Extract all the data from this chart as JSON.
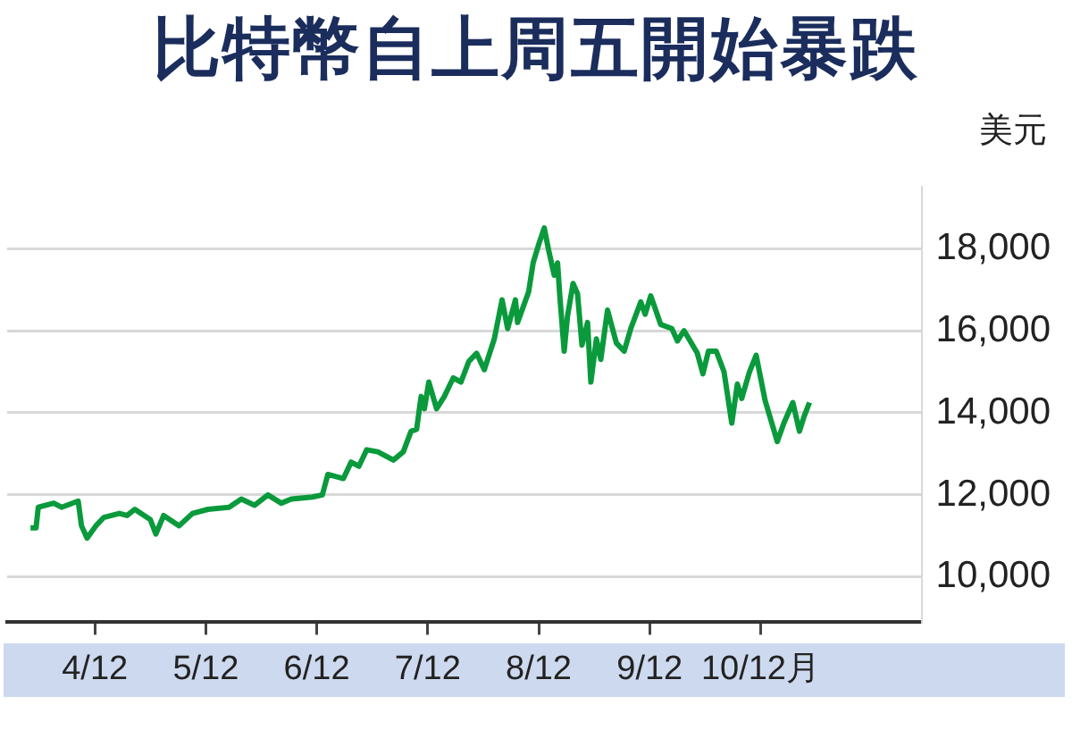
{
  "chart_data": {
    "type": "line",
    "title": "比特幣自上周五開始暴跌",
    "ylabel": "美元",
    "x": [
      "--12-03T10:05",
      "--12-03T11:17",
      "--12-03T11:46",
      "--12-03T13:26",
      "--12-03T15:07",
      "--12-03T16:48",
      "--12-03T20:24",
      "--12-03T21:07",
      "--12-03T22:19",
      "--12-04T00:14",
      "--12-04T01:55",
      "--12-04T05:17",
      "--12-04T06:58",
      "--12-04T08:38",
      "--12-04T12:00",
      "--12-04T13:12",
      "--12-04T14:53",
      "--12-04T18:14",
      "--12-04T21:07",
      "--12-05T00:29",
      "--12-05T05:02",
      "--12-05T07:41",
      "--12-05T10:34",
      "--12-05T13:26",
      "--12-05T16:19",
      "--12-05T18:29",
      "--12-05T23:02",
      "--12-06T01:12",
      "--12-06T02:24",
      "--12-06T05:46",
      "--12-06T07:26",
      "--12-06T09:07",
      "--12-06T10:48",
      "--12-06T13:12",
      "--12-06T16:34",
      "--12-06T18:43",
      "--12-06T20:24",
      "--12-06T21:36",
      "--12-06T22:34",
      "--12-06T23:17",
      "--12-07T00:14",
      "--12-07T01:55",
      "--12-07T03:36",
      "--12-07T05:31",
      "--12-07T07:12",
      "--12-07T08:53",
      "--12-07T10:34",
      "--12-07T12:14",
      "--12-07T14:24",
      "--12-07T16:05",
      "--12-07T17:17",
      "--12-07T18:58",
      "--12-07T19:26",
      "--12-07T21:50",
      "--12-07T22:48",
      "--12-08T00:00",
      "--12-08T01:12",
      "--12-08T02:10",
      "--12-08T03:22",
      "--12-08T04:05",
      "--12-08T04:34",
      "--12-08T05:31",
      "--12-08T06:14",
      "--12-08T07:26",
      "--12-08T08:24",
      "--12-08T09:22",
      "--12-08T10:34",
      "--12-08T11:17",
      "--12-08T12:29",
      "--12-08T13:26",
      "--12-08T14:53",
      "--12-08T16:48",
      "--12-08T18:29",
      "--12-08T19:55",
      "--12-08T22:05",
      "--12-08T23:02",
      "--12-09T00:14",
      "--12-09T02:24",
      "--12-09T04:48",
      "--12-09T06:00",
      "--12-09T07:26",
      "--12-09T10:19",
      "--12-09T11:31",
      "--12-09T12:43",
      "--12-09T14:24",
      "--12-09T16:05",
      "--12-09T17:46",
      "--12-09T18:58",
      "--12-09T19:55",
      "--12-09T21:36",
      "--12-09T23:02",
      "--12-10T00:58",
      "--12-10T03:36",
      "--12-10T05:02",
      "--12-10T06:58",
      "--12-10T08:24",
      "--12-10T09:22",
      "--12-10T10:34"
    ],
    "series": [
      {
        "color": "#0a9a3c",
        "values": [
          11200,
          11200,
          11700,
          11750,
          11800,
          11700,
          11850,
          11250,
          10950,
          11250,
          11450,
          11550,
          11500,
          11650,
          11400,
          11050,
          11500,
          11250,
          11550,
          11650,
          11700,
          11900,
          11750,
          12000,
          11800,
          11900,
          11950,
          12000,
          12500,
          12400,
          12800,
          12700,
          13100,
          13050,
          12850,
          13050,
          13550,
          13600,
          14400,
          14100,
          14750,
          14100,
          14400,
          14850,
          14750,
          15250,
          15450,
          15050,
          15800,
          16750,
          16050,
          16750,
          16200,
          16950,
          17650,
          18100,
          18500,
          17950,
          17350,
          17650,
          16850,
          15500,
          16350,
          17150,
          16900,
          15650,
          16200,
          14750,
          15800,
          15300,
          16500,
          15700,
          15500,
          16050,
          16700,
          16400,
          16850,
          16150,
          16050,
          15750,
          16000,
          15450,
          14950,
          15500,
          15500,
          15000,
          13750,
          14700,
          14350,
          15000,
          15400,
          14300,
          13300,
          13750,
          14250,
          13550,
          13900,
          14250
        ]
      }
    ],
    "xlim": [
      "--12-03T05:02",
      "--12-11T10:48"
    ],
    "xticks": [
      {
        "value": "--12-04",
        "label": "4/12"
      },
      {
        "value": "--12-05",
        "label": "5/12"
      },
      {
        "value": "--12-06",
        "label": "6/12"
      },
      {
        "value": "--12-07",
        "label": "7/12"
      },
      {
        "value": "--12-08",
        "label": "8/12"
      },
      {
        "value": "--12-09",
        "label": "9/12"
      },
      {
        "value": "--12-10",
        "label": "10/12月"
      }
    ],
    "ylim": [
      8900,
      19500
    ],
    "yticks": [
      {
        "value": 10000,
        "label": "10,000"
      },
      {
        "value": 12000,
        "label": "12,000"
      },
      {
        "value": 14000,
        "label": "14,000"
      },
      {
        "value": 16000,
        "label": "16,000"
      },
      {
        "value": 18000,
        "label": "18,000"
      }
    ],
    "grid": "y",
    "legend": false,
    "marker": "none",
    "line_style": "solid"
  }
}
